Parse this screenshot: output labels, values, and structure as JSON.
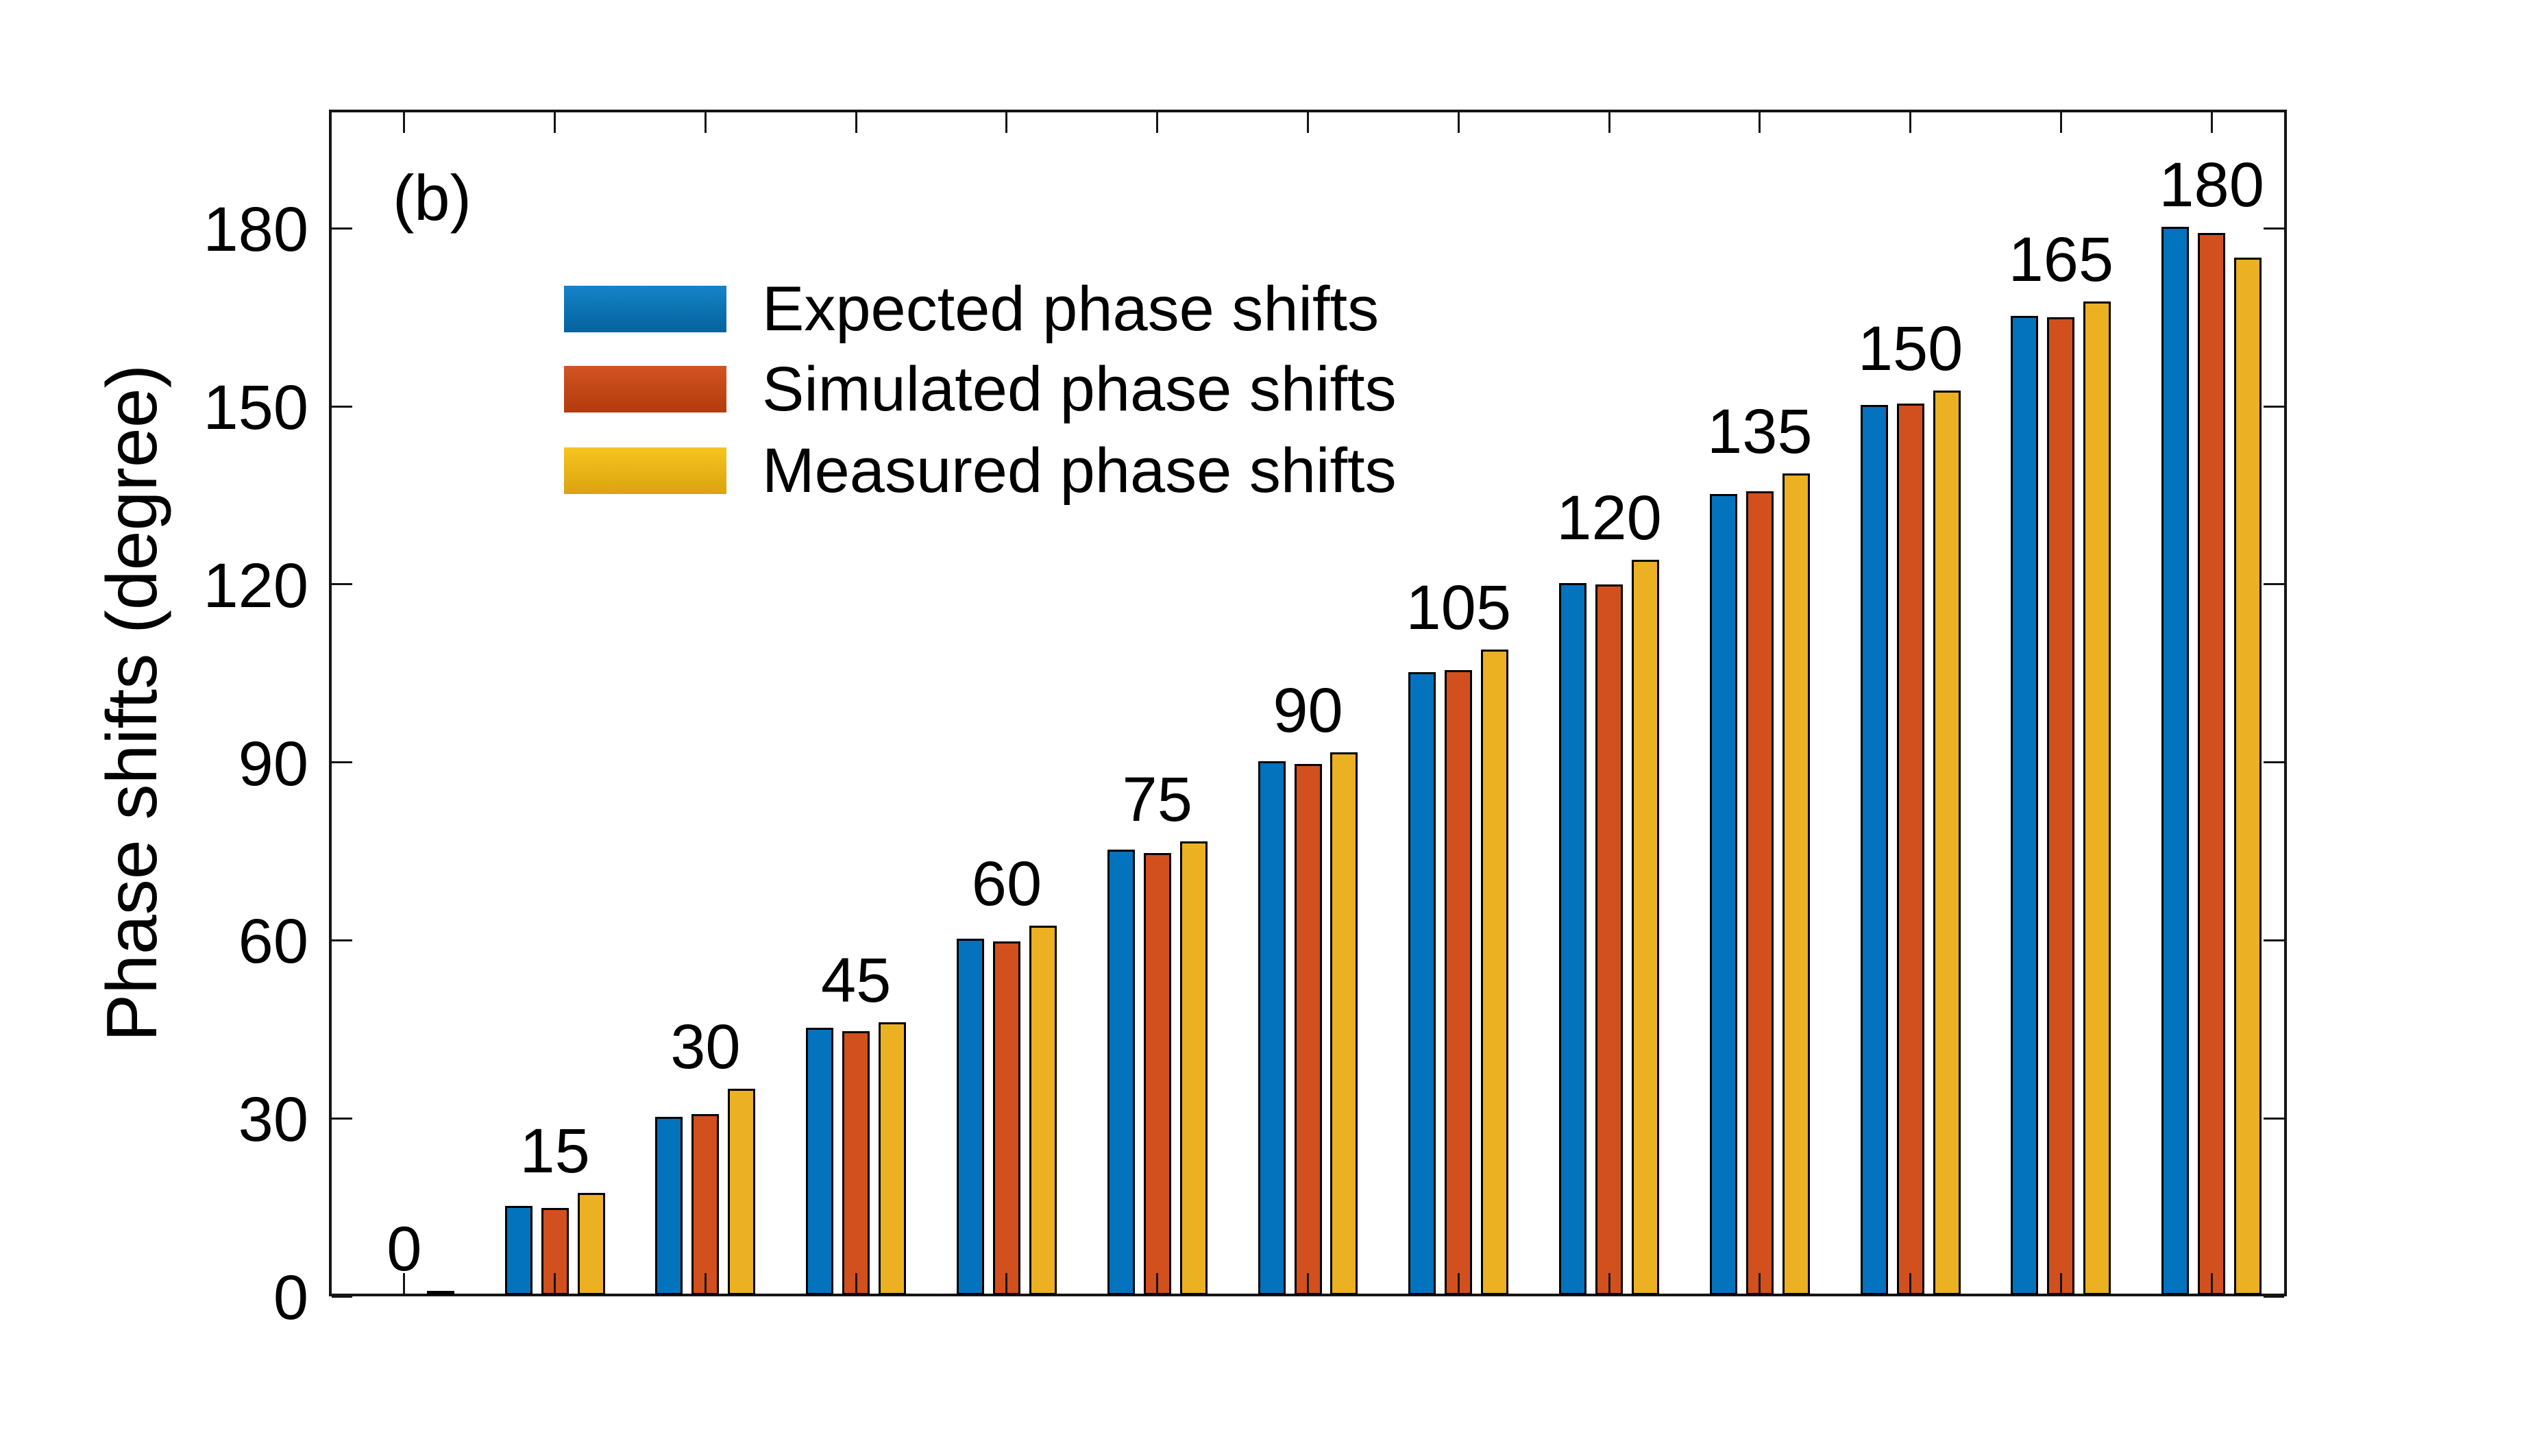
{
  "figure": {
    "panel_label": "(b)"
  },
  "chart_data": {
    "type": "bar",
    "title": "",
    "xlabel": "",
    "ylabel": "Phase shifts (degree)",
    "categories": [
      0,
      15,
      30,
      45,
      60,
      75,
      90,
      105,
      120,
      135,
      150,
      165,
      180
    ],
    "bar_group_labels": [
      "0",
      "15",
      "30",
      "45",
      "60",
      "75",
      "90",
      "105",
      "120",
      "135",
      "150",
      "165",
      "180"
    ],
    "series": [
      {
        "name": "Expected phase shifts",
        "color": "#0473BD",
        "legend_gradient": [
          "#1583C9",
          "#04639D"
        ],
        "values": [
          0,
          15,
          30,
          45,
          60,
          75,
          90,
          105,
          120,
          135,
          150,
          165,
          180
        ]
      },
      {
        "name": "Simulated phase shifts",
        "color": "#D2501D",
        "legend_gradient": [
          "#D25323",
          "#B23C0C"
        ],
        "values": [
          0,
          14.7,
          30.5,
          44.4,
          59.6,
          74.5,
          89.5,
          105.3,
          119.8,
          135.4,
          150.2,
          164.8,
          179.0
        ]
      },
      {
        "name": "Measured phase shifts",
        "color": "#EBB122",
        "legend_gradient": [
          "#F6C51F",
          "#D9A30E"
        ],
        "values": [
          0.7,
          17.2,
          34.7,
          46.0,
          62.2,
          76.5,
          91.5,
          108.8,
          123.9,
          138.5,
          152.4,
          167.4,
          174.8
        ]
      }
    ],
    "ylim": [
      0,
      200
    ],
    "yticks": [
      0,
      30,
      60,
      90,
      120,
      150,
      180
    ],
    "grid": false,
    "box": true,
    "tick_direction": "in",
    "legend_position": "upper-left-inside",
    "bar_edge_color": "#000000",
    "axis_color": "#151515"
  }
}
